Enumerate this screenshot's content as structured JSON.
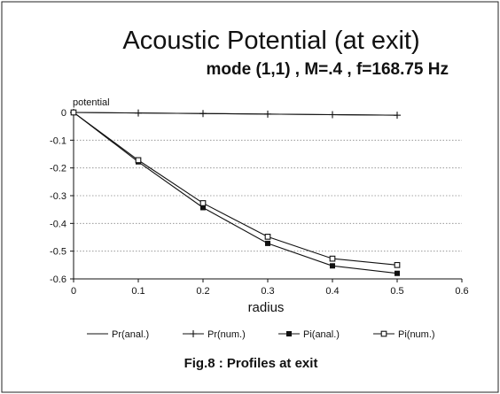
{
  "header": {
    "title": "Acoustic Potential (at exit)",
    "subtitle": "mode (1,1) , M=.4 , f=168.75 Hz"
  },
  "caption": "Fig.8 : Profiles at exit",
  "chart_data": {
    "type": "line",
    "ylabel": "potential",
    "xlabel": "radius",
    "xlim": [
      0,
      0.6
    ],
    "ylim": [
      -0.6,
      0
    ],
    "x_ticks": [
      "0",
      "0.1",
      "0.2",
      "0.3",
      "0.4",
      "0.5",
      "0.6"
    ],
    "y_ticks": [
      "0",
      "-0.1",
      "-0.2",
      "-0.3",
      "-0.4",
      "-0.5",
      "-0.6"
    ],
    "grid": "horizontal",
    "legend_position": "bottom",
    "series": [
      {
        "name": "Pr(anal.)",
        "marker": "none",
        "x": [
          0,
          0.1,
          0.2,
          0.3,
          0.4,
          0.5
        ],
        "y": [
          0,
          -0.002,
          -0.004,
          -0.006,
          -0.008,
          -0.01
        ]
      },
      {
        "name": "Pr(num.)",
        "marker": "plus",
        "x": [
          0,
          0.1,
          0.2,
          0.3,
          0.4,
          0.5
        ],
        "y": [
          0,
          -0.002,
          -0.004,
          -0.006,
          -0.008,
          -0.01
        ]
      },
      {
        "name": "Pi(anal.)",
        "marker": "filled-square",
        "x": [
          0,
          0.1,
          0.2,
          0.3,
          0.4,
          0.5
        ],
        "y": [
          0,
          -0.178,
          -0.343,
          -0.472,
          -0.553,
          -0.58
        ]
      },
      {
        "name": "Pi(num.)",
        "marker": "open-square",
        "x": [
          0,
          0.1,
          0.2,
          0.3,
          0.4,
          0.5
        ],
        "y": [
          0,
          -0.172,
          -0.327,
          -0.448,
          -0.527,
          -0.55
        ]
      }
    ]
  }
}
